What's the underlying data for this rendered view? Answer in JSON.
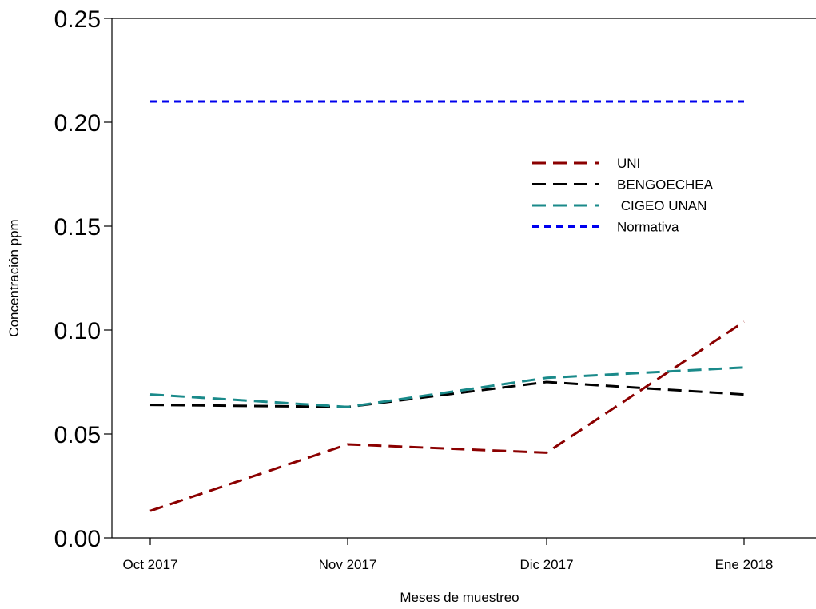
{
  "chart_data": {
    "type": "line",
    "title": "",
    "xlabel": "Meses de muestreo",
    "ylabel": "Concentración ppm",
    "categories": [
      "Oct 2017",
      "Nov 2017",
      "Dic 2017",
      "Ene 2018"
    ],
    "ylim": [
      0,
      0.25
    ],
    "yticks": [
      "0.00",
      "0.05",
      "0.10",
      "0.15",
      "0.20",
      "0.25"
    ],
    "grid": false,
    "legend_position": "top-right",
    "series": [
      {
        "name": "UNI",
        "values": [
          0.013,
          0.045,
          0.041,
          0.104
        ],
        "color": "#8b0000",
        "dash": "long"
      },
      {
        "name": "BENGOECHEA",
        "values": [
          0.064,
          0.063,
          0.075,
          0.069
        ],
        "color": "#000000",
        "dash": "long"
      },
      {
        "name": " CIGEO UNAN",
        "values": [
          0.069,
          0.063,
          0.077,
          0.082
        ],
        "color": "#1a8a8a",
        "dash": "long"
      },
      {
        "name": "Normativa",
        "values": [
          0.21,
          0.21,
          0.21,
          0.21
        ],
        "color": "#0000ee",
        "dash": "short"
      }
    ]
  }
}
